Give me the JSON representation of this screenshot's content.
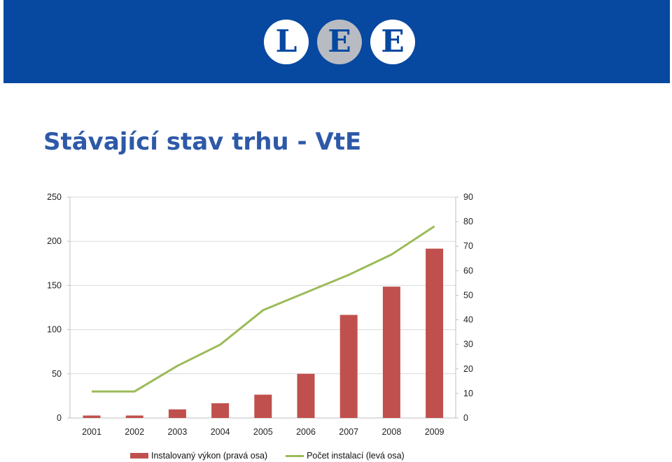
{
  "header": {
    "logo_letters": [
      "L",
      "E",
      "E"
    ],
    "banner_color": "#0748A0"
  },
  "slide": {
    "title": "Stávající stav trhu - VtE"
  },
  "chart_data": {
    "type": "bar",
    "title": "",
    "categories": [
      "2001",
      "2002",
      "2003",
      "2004",
      "2005",
      "2006",
      "2007",
      "2008",
      "2009"
    ],
    "series": [
      {
        "name": "Instalovaný výkon (pravá osa)",
        "type": "bar",
        "axis": "right",
        "color": "#C0504D",
        "values": [
          1,
          1,
          3.5,
          6,
          9.5,
          18,
          42,
          53.5,
          69
        ]
      },
      {
        "name": "Počet instalací (levá osa)",
        "type": "line",
        "axis": "left",
        "color": "#9BBB59",
        "values": [
          30,
          30,
          59,
          83,
          122,
          142,
          162,
          185,
          217
        ]
      }
    ],
    "y_left": {
      "min": 0,
      "max": 250,
      "ticks": [
        "0",
        "50",
        "100",
        "150",
        "200",
        "250"
      ]
    },
    "y_right": {
      "min": 0,
      "max": 90,
      "ticks": [
        "0",
        "10",
        "20",
        "30",
        "40",
        "50",
        "60",
        "70",
        "80",
        "90"
      ]
    },
    "grid": true,
    "legend_position": "bottom"
  }
}
